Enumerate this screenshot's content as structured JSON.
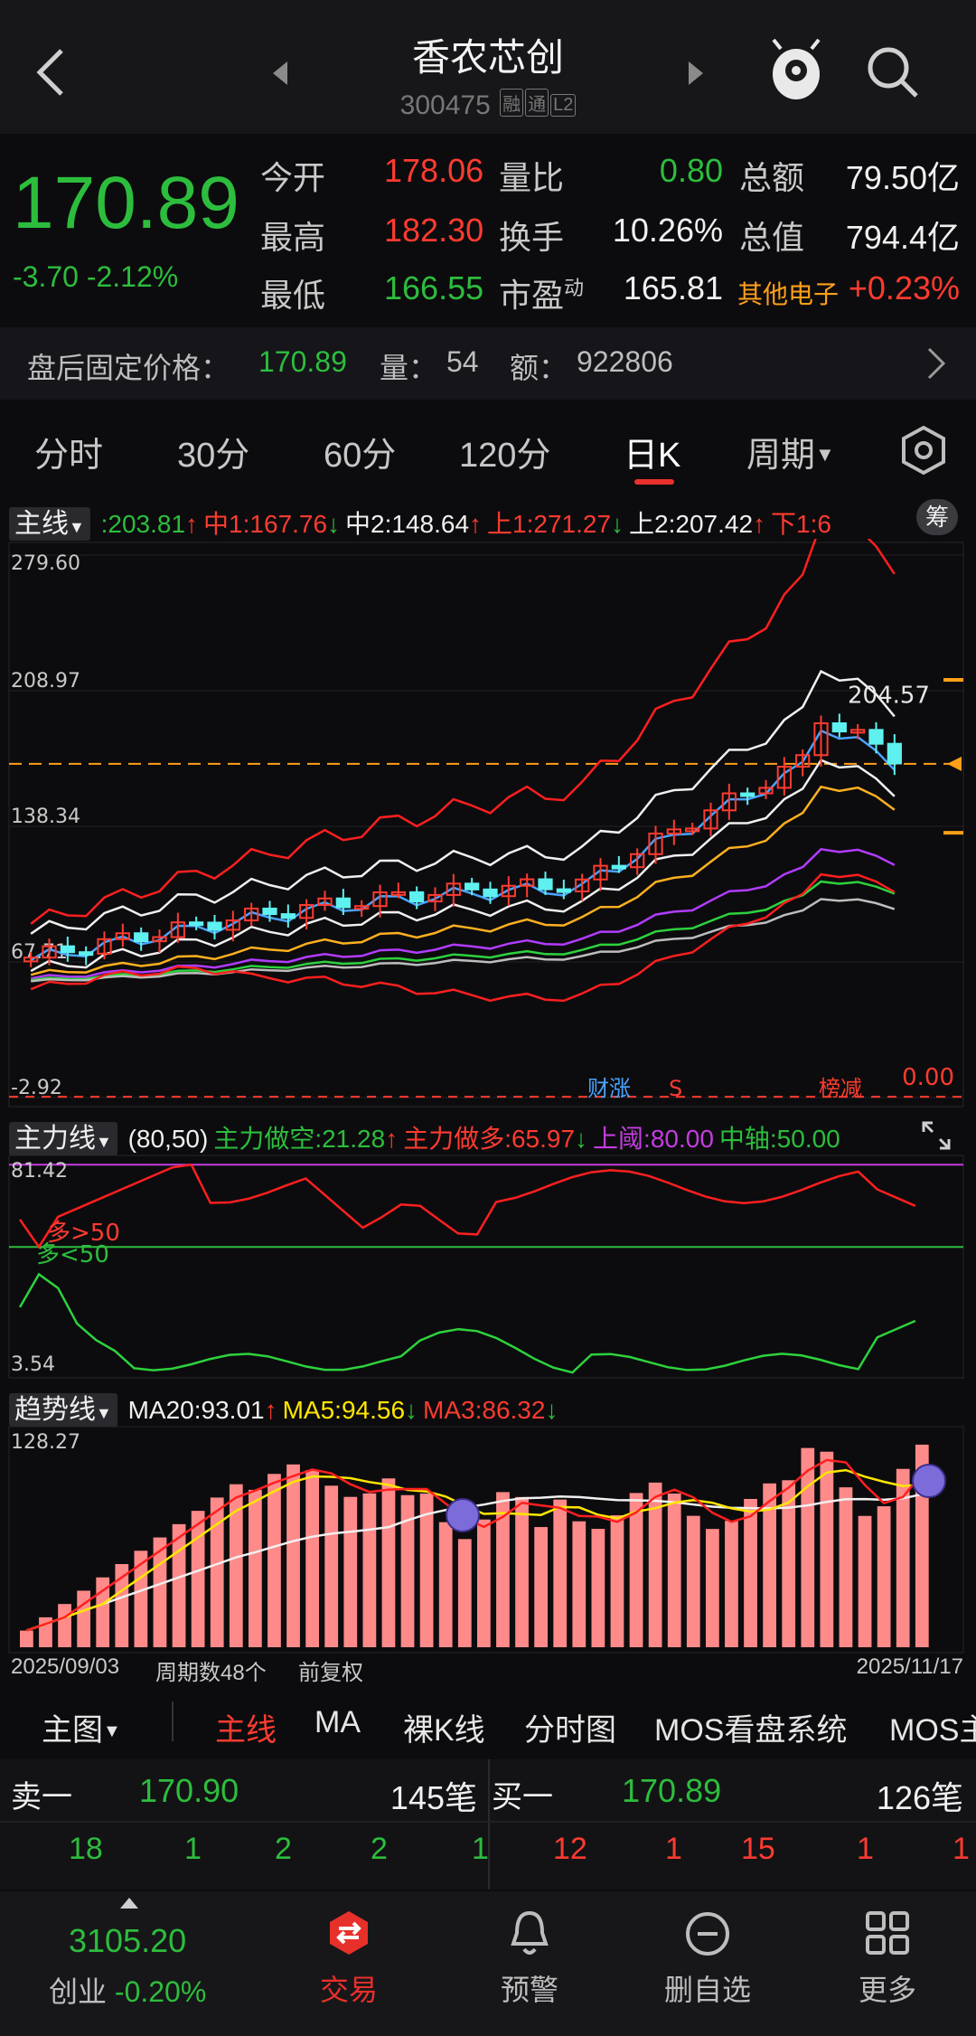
{
  "header": {
    "title": "香农芯创",
    "code": "300475",
    "tags": [
      "融",
      "通",
      "L2"
    ]
  },
  "quote": {
    "price": "170.89",
    "change": "-3.70",
    "change_pct": "-2.12%",
    "rows": [
      {
        "l1": "今开",
        "v1": "178.06",
        "l2": "量比",
        "v2": "0.80",
        "l3": "总额",
        "v3": "79.50亿"
      },
      {
        "l1": "最高",
        "v1": "182.30",
        "l2": "换手",
        "v2": "10.26%",
        "l3": "总值",
        "v3": "794.4亿"
      },
      {
        "l1": "最低",
        "v1": "166.55",
        "l2": "市盈",
        "l2sup": "动",
        "v2": "165.81",
        "l3": "其他电子",
        "v3": "+0.23%"
      }
    ]
  },
  "afterhours": {
    "label": "盘后固定价格：",
    "price": "170.89",
    "vol_label": "量：",
    "vol": "54",
    "amt_label": "额：",
    "amt": "922806"
  },
  "tabs": [
    "分时",
    "30分",
    "60分",
    "120分",
    "日K",
    "周期"
  ],
  "main_chart": {
    "dropdown": "主线",
    "legend": [
      {
        "text": ":203.81",
        "color": "#2dbd3d",
        "arrow": "↑",
        "arrow_color": "#ff3b30"
      },
      {
        "text": "中1:167.76",
        "color": "#ff3b30",
        "arrow": "↓",
        "arrow_color": "#2dbd3d"
      },
      {
        "text": "中2:148.64",
        "color": "#f0f0f0",
        "arrow": "↑",
        "arrow_color": "#ff3b30"
      },
      {
        "text": "上1:271.27",
        "color": "#ff3b30",
        "arrow": "↓",
        "arrow_color": "#2dbd3d"
      },
      {
        "text": "上2:207.42",
        "color": "#f0f0f0",
        "arrow": "↑",
        "arrow_color": "#ff3b30"
      },
      {
        "text": "下1:6",
        "color": "#ff3b30",
        "arrow": "",
        "arrow_color": "#ff3b30"
      }
    ],
    "chip_label": "筹",
    "y_labels": [
      "279.60",
      "208.97",
      "138.34",
      "67.71",
      "-2.92"
    ],
    "zero_label": "0.00",
    "high_marker": "204.57",
    "badges": [
      "财涨",
      "S",
      "榜减"
    ]
  },
  "force_chart": {
    "dropdown": "主力线",
    "legend": [
      {
        "text": "(80,50)",
        "color": "#f0f0f0"
      },
      {
        "text": "主力做空:21.28",
        "color": "#2dbd3d",
        "arrow": "↑",
        "arrow_color": "#ff3b30"
      },
      {
        "text": "主力做多:65.97",
        "color": "#ff3b30",
        "arrow": "↓",
        "arrow_color": "#2dbd3d"
      },
      {
        "text": "上阈:80.00",
        "color": "#c43de0"
      },
      {
        "text": "中轴:50.00",
        "color": "#2dbd3d"
      }
    ],
    "y_top": "81.42",
    "y_bottom": "3.54",
    "note_red": "多>50",
    "note_green": "多<50"
  },
  "trend_chart": {
    "dropdown": "趋势线",
    "legend": [
      {
        "text": "MA20:93.01",
        "color": "#f0f0f0",
        "arrow": "↑",
        "arrow_color": "#ff3b30"
      },
      {
        "text": "MA5:94.56",
        "color": "#ffe600",
        "arrow": "↓",
        "arrow_color": "#2dbd3d"
      },
      {
        "text": "MA3:86.32",
        "color": "#ff3b30",
        "arrow": "↓",
        "arrow_color": "#2dbd3d"
      }
    ],
    "y_top": "128.27",
    "date_start": "2025/09/03",
    "period_count": "周期数48个",
    "adjust": "前复权",
    "date_end": "2025/11/17"
  },
  "chart_modes": [
    "主图",
    "主线",
    "MA",
    "裸K线",
    "分时图",
    "MOS看盘系统",
    "MOS主"
  ],
  "orderbook": {
    "sell_label": "卖一",
    "sell_price": "170.90",
    "sell_count": "145笔",
    "buy_label": "买一",
    "buy_price": "170.89",
    "buy_count": "126笔",
    "sell_queue": [
      "18",
      "1",
      "2",
      "2",
      "1"
    ],
    "buy_queue": [
      "12",
      "1",
      "15",
      "1",
      "1"
    ]
  },
  "nav": {
    "index_value": "3105.20",
    "index_name": "创业",
    "index_change": "-0.20%",
    "items": [
      "交易",
      "预警",
      "删自选",
      "更多"
    ]
  },
  "colors": {
    "up": "#ff3b30",
    "down": "#2dbd3d",
    "accent": "#e8302a",
    "background": "#0c0c0e"
  }
}
